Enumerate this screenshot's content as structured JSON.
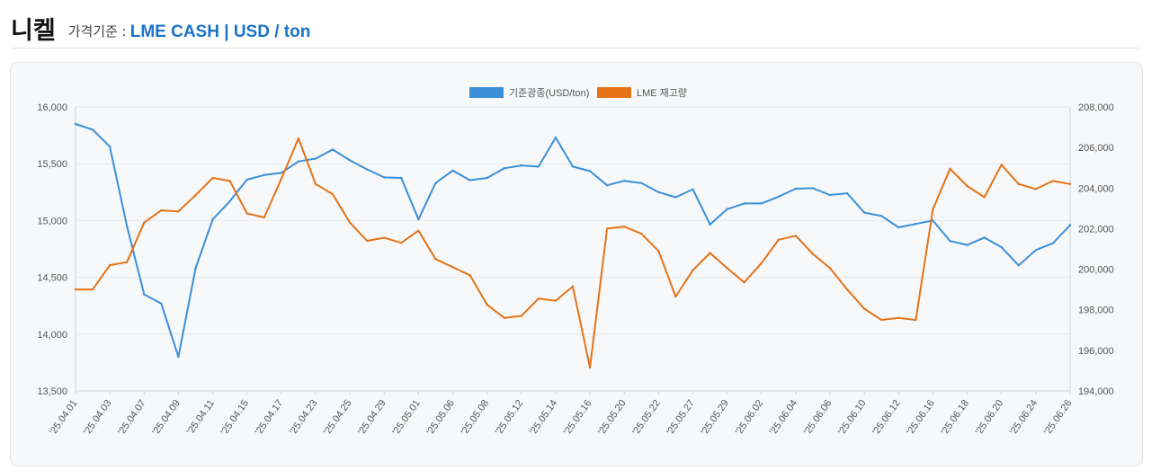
{
  "header": {
    "title": "니켈",
    "sub_label": "가격기준 :",
    "sub_value": "LME CASH | USD / ton"
  },
  "chart_data": {
    "type": "line",
    "title": "",
    "dual_axis": true,
    "legend_position": "top-center",
    "grid": true,
    "y_left": {
      "min": 13500,
      "max": 16000,
      "ticks": [
        13500,
        14000,
        14500,
        15000,
        15500,
        16000
      ],
      "tick_labels": [
        "13,500",
        "14,000",
        "14,500",
        "15,000",
        "15,500",
        "16,000"
      ]
    },
    "y_right": {
      "min": 194000,
      "max": 208000,
      "ticks": [
        194000,
        196000,
        198000,
        200000,
        202000,
        204000,
        206000,
        208000
      ],
      "tick_labels": [
        "194,000",
        "196,000",
        "198,000",
        "200,000",
        "202,000",
        "204,000",
        "206,000",
        "208,000"
      ]
    },
    "x_labels": [
      "'25.04.01",
      "'25.04.03",
      "'25.04.07",
      "'25.04.09",
      "'25.04.11",
      "'25.04.15",
      "'25.04.17",
      "'25.04.23",
      "'25.04.25",
      "'25.04.29",
      "'25.05.01",
      "'25.05.06",
      "'25.05.08",
      "'25.05.12",
      "'25.05.14",
      "'25.05.16",
      "'25.05.20",
      "'25.05.22",
      "'25.05.27",
      "'25.05.29",
      "'25.06.02",
      "'25.06.04",
      "'25.06.06",
      "'25.06.10",
      "'25.06.12",
      "'25.06.16",
      "'25.06.18",
      "'25.06.20",
      "'25.06.24",
      "'25.06.26"
    ],
    "series": [
      {
        "name": "기준광종(USD/ton)",
        "color": "#3b8fd9",
        "axis": "left",
        "values": [
          15850,
          15800,
          15650,
          14950,
          14350,
          14270,
          13800,
          14580,
          15010,
          15170,
          15360,
          15400,
          15420,
          15520,
          15545,
          15625,
          15530,
          15450,
          15380,
          15375,
          15010,
          15330,
          15440,
          15355,
          15375,
          15460,
          15485,
          15475,
          15730,
          15475,
          15435,
          15310,
          15350,
          15330,
          15250,
          15205,
          15275,
          14965,
          15100,
          15150,
          15150,
          15210,
          15280,
          15285,
          15225,
          15240,
          15070,
          15040,
          14940,
          14970,
          15000,
          14820,
          14785,
          14850,
          14765,
          14605,
          14740,
          14800,
          14960
        ]
      },
      {
        "name": "LME 재고량",
        "color": "#e47318",
        "axis": "right",
        "values": [
          199000,
          199000,
          200200,
          200350,
          202300,
          202900,
          202850,
          203650,
          204500,
          204350,
          202750,
          202550,
          204450,
          206450,
          204200,
          203700,
          202300,
          201400,
          201550,
          201300,
          201900,
          200500,
          200100,
          199700,
          198250,
          197600,
          197700,
          198550,
          198450,
          199150,
          195150,
          202000,
          202100,
          201750,
          200900,
          198650,
          199950,
          200800,
          200050,
          199350,
          200300,
          201450,
          201650,
          200750,
          200050,
          199000,
          198050,
          197500,
          197600,
          197500,
          202950,
          204950,
          204100,
          203550,
          205150,
          204200,
          203950,
          204350,
          204200
        ]
      }
    ]
  }
}
